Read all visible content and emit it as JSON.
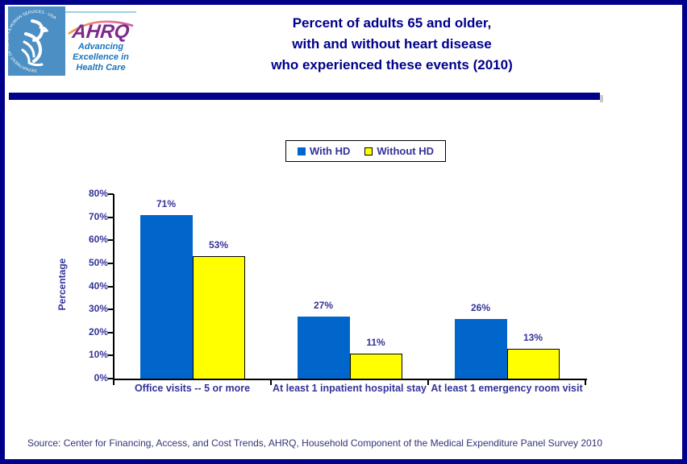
{
  "header": {
    "title_lines": [
      "Percent of adults 65 and older,",
      "with and without heart disease",
      "who experienced these events (2010)"
    ],
    "logos": {
      "hhs_seal_text": "DEPARTMENT OF HEALTH & HUMAN SERVICES · USA",
      "ahrq_acronym": "AHRQ",
      "ahrq_tagline_lines": [
        "Advancing",
        "Excellence in",
        "Health Care"
      ]
    }
  },
  "chart_data": {
    "type": "bar",
    "title": "Percent of adults 65 and older, with and without heart disease who experienced these events (2010)",
    "categories": [
      "Office visits -- 5 or more",
      "At least 1 inpatient hospital stay",
      "At least 1 emergency room visit"
    ],
    "series": [
      {
        "name": "With HD",
        "color": "#0066CC",
        "border_color": "#0066CC",
        "values": [
          71,
          27,
          26
        ]
      },
      {
        "name": "Without HD",
        "color": "#FFFF00",
        "border_color": "#000000",
        "values": [
          53,
          11,
          13
        ]
      }
    ],
    "xlabel": "",
    "ylabel": "Percentage",
    "ylim": [
      0,
      80
    ],
    "ytick_step": 10,
    "ytick_suffix": "%",
    "value_label_suffix": "%",
    "grid": false,
    "legend_position": "top-center"
  },
  "source_text": "Source: Center for Financing, Access, and Cost Trends, AHRQ, Household Component of the Medical Expenditure Panel Survey 2010",
  "colors": {
    "border_navy": "#00008B",
    "title_navy": "#00008B",
    "label_navy": "#333399",
    "bar_blue": "#0066CC",
    "bar_yellow": "#FFFF00",
    "hhs_blue": "#4b8fc4",
    "ahrq_purple": "#7d2a8c",
    "ahrq_blue": "#1b75bc"
  }
}
